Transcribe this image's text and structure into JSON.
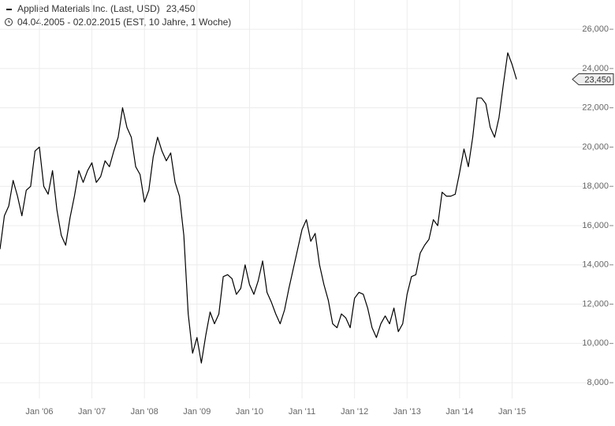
{
  "chart_data": {
    "type": "line",
    "title": "Applied Materials Inc. (Last, USD)",
    "title_value": "23,450",
    "subtitle": "04.04.2005 - 02.02.2015 (EST, 10 Jahre, 1 Woche)",
    "x": [
      "2005-04",
      "2005-05",
      "2005-06",
      "2005-07",
      "2005-08",
      "2005-09",
      "2005-10",
      "2005-11",
      "2005-12",
      "2006-01",
      "2006-02",
      "2006-03",
      "2006-04",
      "2006-05",
      "2006-06",
      "2006-07",
      "2006-08",
      "2006-09",
      "2006-10",
      "2006-11",
      "2006-12",
      "2007-01",
      "2007-02",
      "2007-03",
      "2007-04",
      "2007-05",
      "2007-06",
      "2007-07",
      "2007-08",
      "2007-09",
      "2007-10",
      "2007-11",
      "2007-12",
      "2008-01",
      "2008-02",
      "2008-03",
      "2008-04",
      "2008-05",
      "2008-06",
      "2008-07",
      "2008-08",
      "2008-09",
      "2008-10",
      "2008-11",
      "2008-12",
      "2009-01",
      "2009-02",
      "2009-03",
      "2009-04",
      "2009-05",
      "2009-06",
      "2009-07",
      "2009-08",
      "2009-09",
      "2009-10",
      "2009-11",
      "2009-12",
      "2010-01",
      "2010-02",
      "2010-03",
      "2010-04",
      "2010-05",
      "2010-06",
      "2010-07",
      "2010-08",
      "2010-09",
      "2010-10",
      "2010-11",
      "2010-12",
      "2011-01",
      "2011-02",
      "2011-03",
      "2011-04",
      "2011-05",
      "2011-06",
      "2011-07",
      "2011-08",
      "2011-09",
      "2011-10",
      "2011-11",
      "2011-12",
      "2012-01",
      "2012-02",
      "2012-03",
      "2012-04",
      "2012-05",
      "2012-06",
      "2012-07",
      "2012-08",
      "2012-09",
      "2012-10",
      "2012-11",
      "2012-12",
      "2013-01",
      "2013-02",
      "2013-03",
      "2013-04",
      "2013-05",
      "2013-06",
      "2013-07",
      "2013-08",
      "2013-09",
      "2013-10",
      "2013-11",
      "2013-12",
      "2014-01",
      "2014-02",
      "2014-03",
      "2014-04",
      "2014-05",
      "2014-06",
      "2014-07",
      "2014-08",
      "2014-09",
      "2014-10",
      "2014-11",
      "2014-12",
      "2015-01",
      "2015-02"
    ],
    "series": [
      {
        "name": "Applied Materials Inc.",
        "color": "#000000",
        "values": [
          14800,
          16500,
          17000,
          18300,
          17500,
          16500,
          17800,
          18000,
          19800,
          20000,
          18000,
          17600,
          18800,
          16800,
          15500,
          15000,
          16400,
          17500,
          18800,
          18200,
          18800,
          19200,
          18200,
          18500,
          19300,
          19000,
          19800,
          20500,
          22000,
          21000,
          20500,
          19000,
          18600,
          17200,
          17800,
          19500,
          20500,
          19800,
          19300,
          19700,
          18200,
          17500,
          15500,
          11500,
          9500,
          10300,
          9000,
          10400,
          11600,
          11000,
          11500,
          13400,
          13500,
          13300,
          12500,
          12800,
          14000,
          13000,
          12500,
          13200,
          14200,
          12600,
          12100,
          11500,
          11000,
          11700,
          12800,
          13800,
          14800,
          15800,
          16300,
          15200,
          15600,
          14000,
          13000,
          12200,
          11000,
          10800,
          11500,
          11300,
          10800,
          12300,
          12600,
          12500,
          11800,
          10800,
          10300,
          11000,
          11400,
          11000,
          11800,
          10600,
          11000,
          12500,
          13400,
          13500,
          14600,
          15000,
          15300,
          16300,
          16000,
          17700,
          17500,
          17500,
          17600,
          18700,
          19900,
          19000,
          20500,
          22500,
          22500,
          22200,
          21000,
          20500,
          21500,
          23200,
          24800,
          24200,
          23450
        ]
      }
    ],
    "last_marker": {
      "value": 23450,
      "label": "23,450"
    },
    "xlim": [
      "2005-04",
      "2016-08"
    ],
    "xticks": [
      {
        "value": "2006-01",
        "label": "Jan '06"
      },
      {
        "value": "2007-01",
        "label": "Jan '07"
      },
      {
        "value": "2008-01",
        "label": "Jan '08"
      },
      {
        "value": "2009-01",
        "label": "Jan '09"
      },
      {
        "value": "2010-01",
        "label": "Jan '10"
      },
      {
        "value": "2011-01",
        "label": "Jan '11"
      },
      {
        "value": "2012-01",
        "label": "Jan '12"
      },
      {
        "value": "2013-01",
        "label": "Jan '13"
      },
      {
        "value": "2014-01",
        "label": "Jan '14"
      },
      {
        "value": "2015-01",
        "label": "Jan '15"
      }
    ],
    "ylim": [
      7200,
      27490
    ],
    "yticks": [
      {
        "value": 8000,
        "label": "8,000"
      },
      {
        "value": 10000,
        "label": "10,000"
      },
      {
        "value": 12000,
        "label": "12,000"
      },
      {
        "value": 14000,
        "label": "14,000"
      },
      {
        "value": 16000,
        "label": "16,000"
      },
      {
        "value": 18000,
        "label": "18,000"
      },
      {
        "value": 20000,
        "label": "20,000"
      },
      {
        "value": 22000,
        "label": "22,000"
      },
      {
        "value": 24000,
        "label": "24,000"
      },
      {
        "value": 26000,
        "label": "26,000"
      }
    ],
    "grid": true
  }
}
